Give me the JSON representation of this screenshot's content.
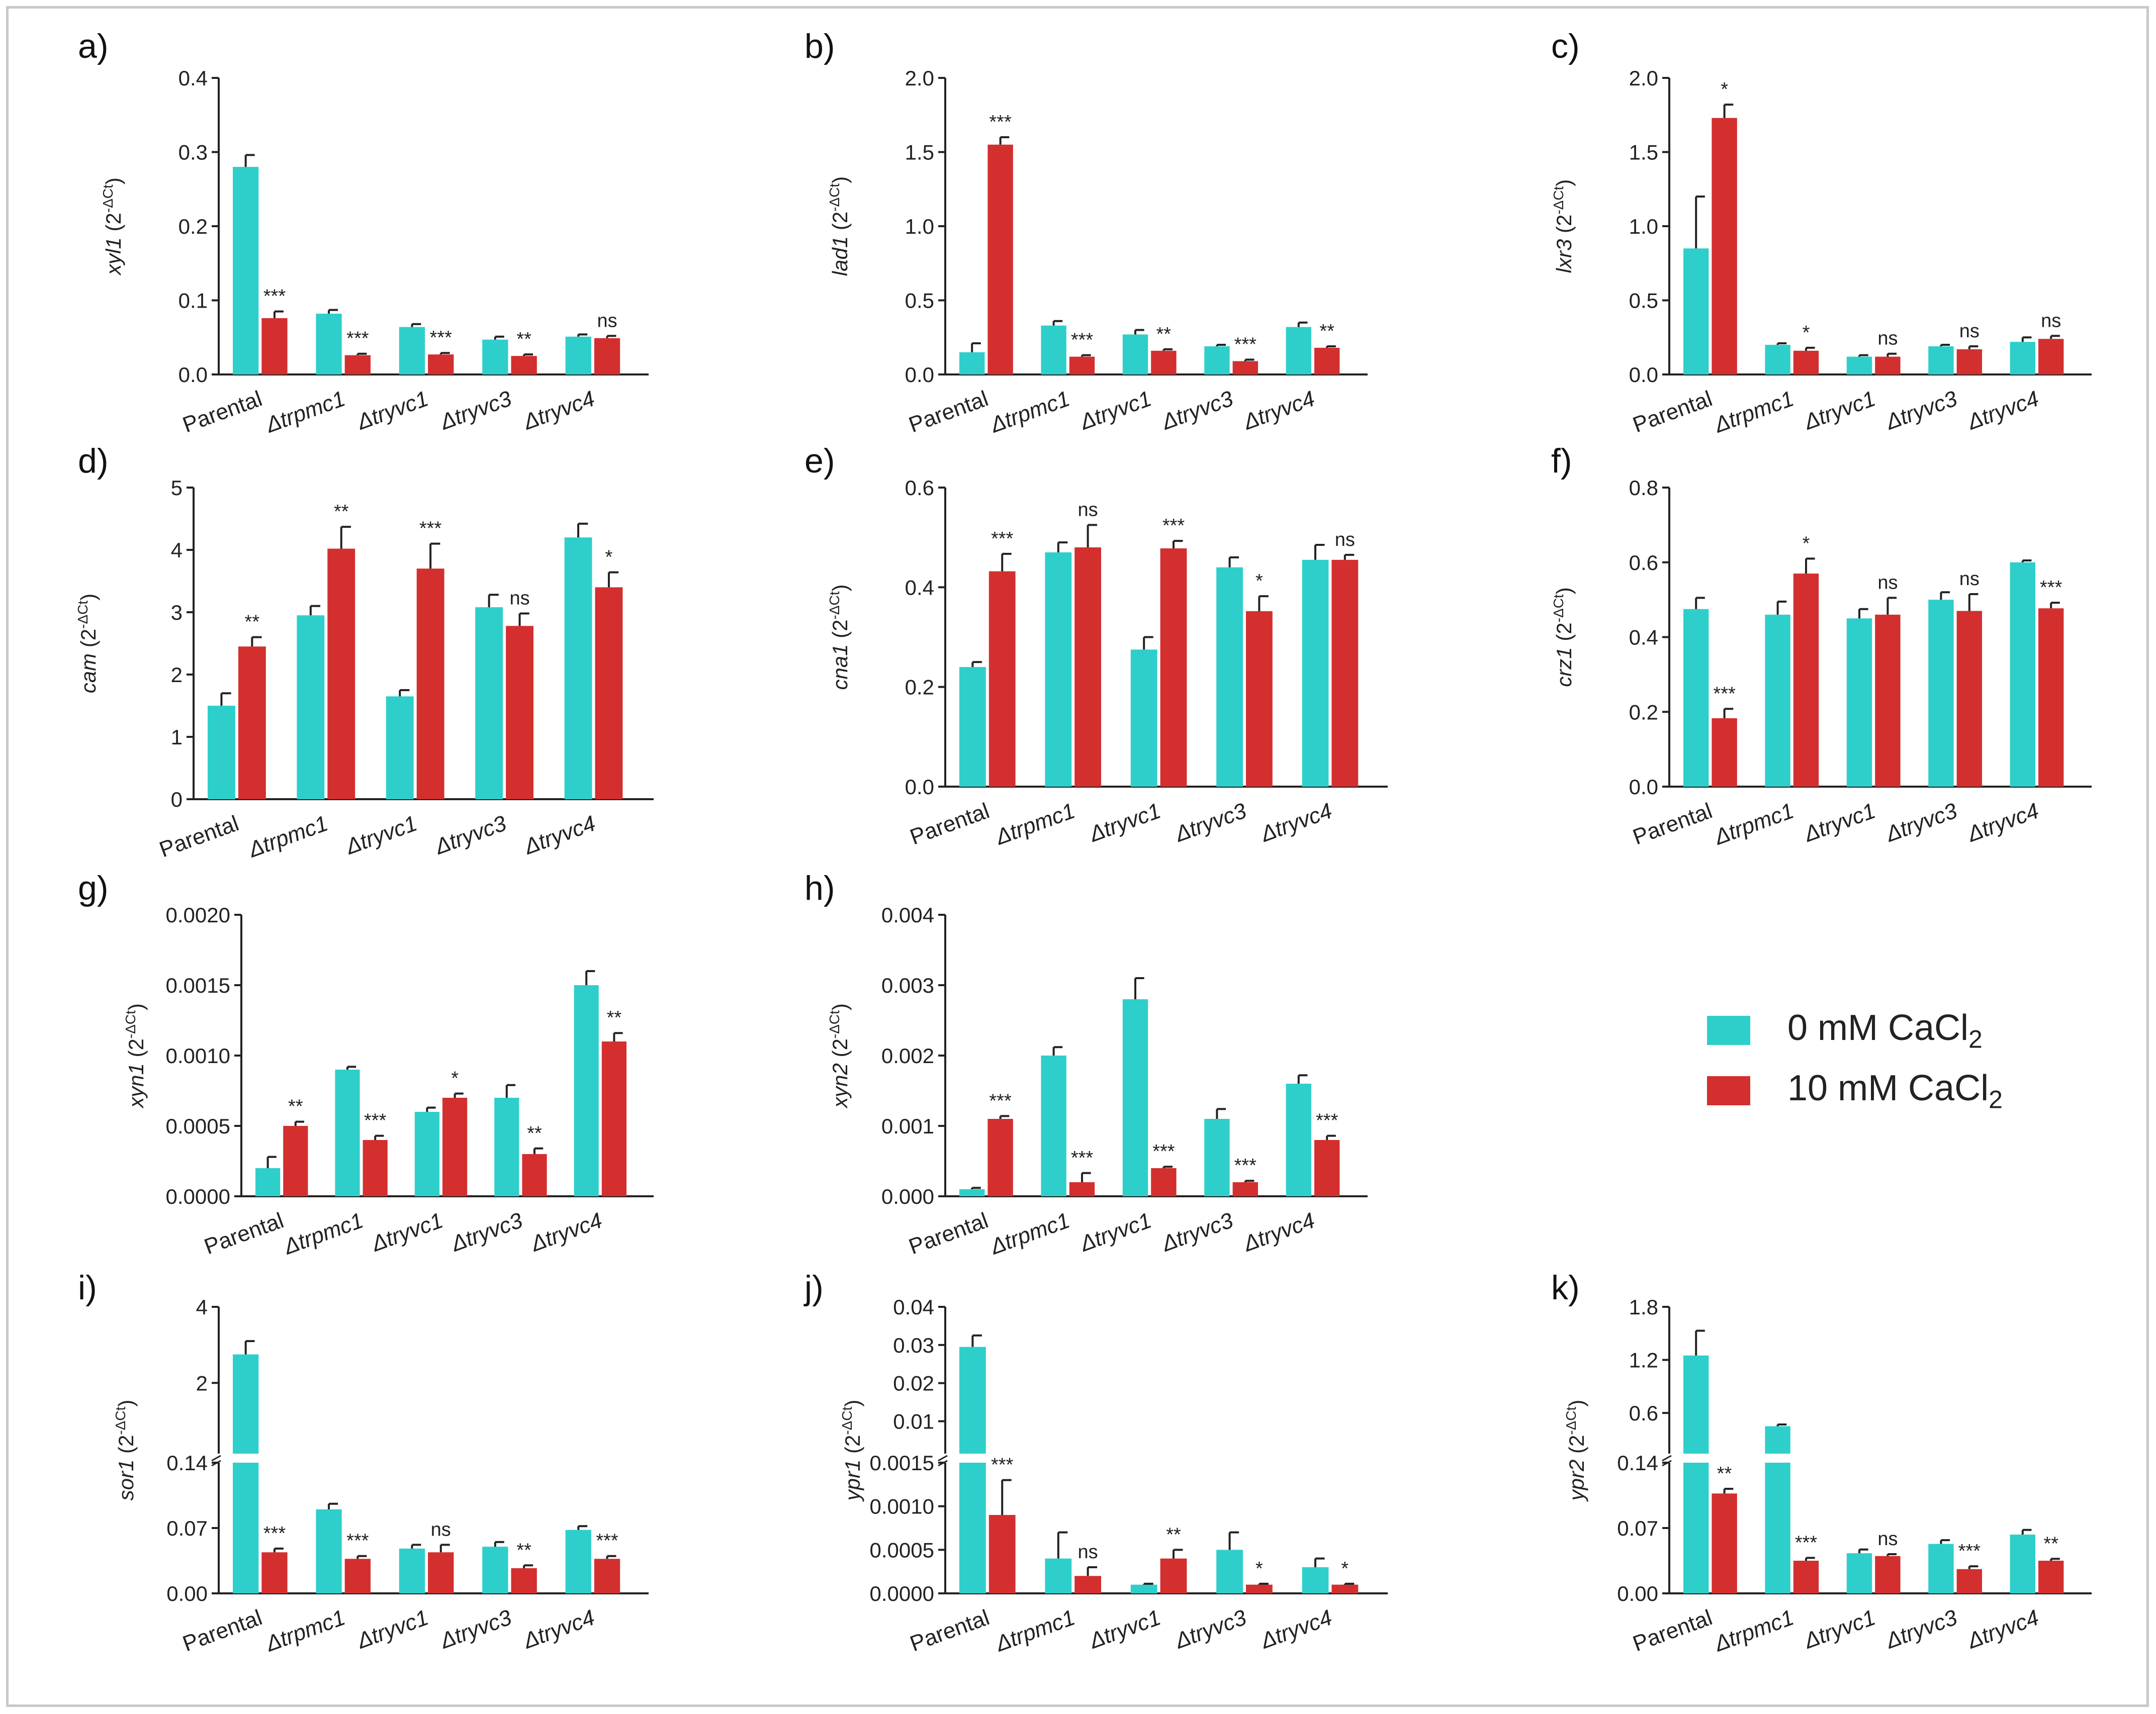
{
  "colors": {
    "control": "#2ECFCB",
    "treated": "#D32F2F",
    "axis": "#222222"
  },
  "legend": {
    "control_prefix": "0 mM CaCl",
    "control_sub": "2",
    "treated_prefix": "10 mM CaCl",
    "treated_sub": "2"
  },
  "chart_data": [
    {
      "type": "bar",
      "panel": "a)",
      "gene": "xyl1",
      "ylabel_suffix": " (2",
      "categories": [
        "Parental",
        "Δtrpmc1",
        "Δtryvc1",
        "Δtryvc3",
        "Δtryvc4"
      ],
      "ylim": [
        0,
        0.4
      ],
      "ticks": [
        "0.0",
        "0.1",
        "0.2",
        "0.3",
        "0.4"
      ],
      "series": [
        {
          "name": "0 mM CaCl2",
          "values": [
            0.28,
            0.082,
            0.064,
            0.047,
            0.051
          ],
          "errors": [
            0.016,
            0.005,
            0.004,
            0.004,
            0.003
          ]
        },
        {
          "name": "10 mM CaCl2",
          "values": [
            0.076,
            0.026,
            0.027,
            0.025,
            0.049
          ],
          "errors": [
            0.009,
            0.002,
            0.002,
            0.002,
            0.003
          ]
        }
      ],
      "significance": [
        "***",
        "***",
        "***",
        "**",
        "ns"
      ]
    },
    {
      "type": "bar",
      "panel": "b)",
      "gene": "lad1",
      "categories": [
        "Parental",
        "Δtrpmc1",
        "Δtryvc1",
        "Δtryvc3",
        "Δtryvc4"
      ],
      "ylim": [
        0,
        2.0
      ],
      "ticks": [
        "0.0",
        "0.5",
        "1.0",
        "1.5",
        "2.0"
      ],
      "series": [
        {
          "name": "0 mM CaCl2",
          "values": [
            0.15,
            0.33,
            0.27,
            0.19,
            0.32
          ],
          "errors": [
            0.06,
            0.03,
            0.03,
            0.01,
            0.03
          ]
        },
        {
          "name": "10 mM CaCl2",
          "values": [
            1.55,
            0.12,
            0.16,
            0.09,
            0.18
          ],
          "errors": [
            0.05,
            0.01,
            0.01,
            0.01,
            0.01
          ]
        }
      ],
      "significance": [
        "***",
        "***",
        "**",
        "***",
        "**"
      ]
    },
    {
      "type": "bar",
      "panel": "c)",
      "gene": "lxr3",
      "categories": [
        "Parental",
        "Δtrpmc1",
        "Δtryvc1",
        "Δtryvc3",
        "Δtryvc4"
      ],
      "ylim": [
        0,
        2.0
      ],
      "ticks": [
        "0.0",
        "0.5",
        "1.0",
        "1.5",
        "2.0"
      ],
      "series": [
        {
          "name": "0 mM CaCl2",
          "values": [
            0.85,
            0.2,
            0.12,
            0.19,
            0.22
          ],
          "errors": [
            0.35,
            0.01,
            0.01,
            0.01,
            0.03
          ]
        },
        {
          "name": "10 mM CaCl2",
          "values": [
            1.73,
            0.16,
            0.12,
            0.17,
            0.24
          ],
          "errors": [
            0.09,
            0.02,
            0.02,
            0.02,
            0.02
          ]
        }
      ],
      "significance": [
        "*",
        "*",
        "ns",
        "ns",
        "ns"
      ]
    },
    {
      "type": "bar",
      "panel": "d)",
      "gene": "cam",
      "categories": [
        "Parental",
        "Δtrpmc1",
        "Δtryvc1",
        "Δtryvc3",
        "Δtryvc4"
      ],
      "ylim": [
        0,
        5
      ],
      "ticks": [
        "0",
        "1",
        "2",
        "3",
        "4",
        "5"
      ],
      "series": [
        {
          "name": "0 mM CaCl2",
          "values": [
            1.5,
            2.95,
            1.65,
            3.08,
            4.2
          ],
          "errors": [
            0.2,
            0.15,
            0.1,
            0.2,
            0.22
          ]
        },
        {
          "name": "10 mM CaCl2",
          "values": [
            2.45,
            4.02,
            3.7,
            2.78,
            3.4
          ],
          "errors": [
            0.15,
            0.35,
            0.4,
            0.2,
            0.24
          ]
        }
      ],
      "significance": [
        "**",
        "**",
        "***",
        "ns",
        "*"
      ]
    },
    {
      "type": "bar",
      "panel": "e)",
      "gene": "cna1",
      "categories": [
        "Parental",
        "Δtrpmc1",
        "Δtryvc1",
        "Δtryvc3",
        "Δtryvc4"
      ],
      "ylim": [
        0,
        0.6
      ],
      "ticks": [
        "0.0",
        "0.2",
        "0.4",
        "0.6"
      ],
      "series": [
        {
          "name": "0 mM CaCl2",
          "values": [
            0.24,
            0.47,
            0.275,
            0.44,
            0.455
          ],
          "errors": [
            0.01,
            0.02,
            0.025,
            0.02,
            0.03
          ]
        },
        {
          "name": "10 mM CaCl2",
          "values": [
            0.432,
            0.48,
            0.478,
            0.352,
            0.455
          ],
          "errors": [
            0.035,
            0.045,
            0.015,
            0.03,
            0.01
          ]
        }
      ],
      "significance": [
        "***",
        "ns",
        "***",
        "*",
        "ns"
      ]
    },
    {
      "type": "bar",
      "panel": "f)",
      "gene": "crz1",
      "categories": [
        "Parental",
        "Δtrpmc1",
        "Δtryvc1",
        "Δtryvc3",
        "Δtryvc4"
      ],
      "ylim": [
        0,
        0.8
      ],
      "ticks": [
        "0.0",
        "0.2",
        "0.4",
        "0.6",
        "0.8"
      ],
      "series": [
        {
          "name": "0 mM CaCl2",
          "values": [
            0.475,
            0.46,
            0.45,
            0.5,
            0.6
          ],
          "errors": [
            0.03,
            0.035,
            0.025,
            0.02,
            0.005
          ]
        },
        {
          "name": "10 mM CaCl2",
          "values": [
            0.183,
            0.57,
            0.46,
            0.47,
            0.477
          ],
          "errors": [
            0.025,
            0.04,
            0.045,
            0.045,
            0.015
          ]
        }
      ],
      "significance": [
        "***",
        "*",
        "ns",
        "ns",
        "***"
      ]
    },
    {
      "type": "bar",
      "panel": "g)",
      "gene": "xyn1",
      "categories": [
        "Parental",
        "Δtrpmc1",
        "Δtryvc1",
        "Δtryvc3",
        "Δtryvc4"
      ],
      "ylim": [
        0,
        0.002
      ],
      "ticks": [
        "0.0000",
        "0.0005",
        "0.0010",
        "0.0015",
        "0.0020"
      ],
      "series": [
        {
          "name": "0 mM CaCl2",
          "values": [
            0.0002,
            0.0009,
            0.0006,
            0.0007,
            0.0015
          ],
          "errors": [
            8e-05,
            2e-05,
            3e-05,
            9e-05,
            0.0001
          ]
        },
        {
          "name": "10 mM CaCl2",
          "values": [
            0.0005,
            0.0004,
            0.0007,
            0.0003,
            0.0011
          ],
          "errors": [
            3e-05,
            3e-05,
            3e-05,
            4e-05,
            6e-05
          ]
        }
      ],
      "significance": [
        "**",
        "***",
        "*",
        "**",
        "**"
      ]
    },
    {
      "type": "bar",
      "panel": "h)",
      "gene": "xyn2",
      "categories": [
        "Parental",
        "Δtrpmc1",
        "Δtryvc1",
        "Δtryvc3",
        "Δtryvc4"
      ],
      "ylim": [
        0,
        0.004
      ],
      "ticks": [
        "0.000",
        "0.001",
        "0.002",
        "0.003",
        "0.004"
      ],
      "series": [
        {
          "name": "0 mM CaCl2",
          "values": [
            0.0001,
            0.002,
            0.0028,
            0.0011,
            0.0016
          ],
          "errors": [
            2e-05,
            0.00012,
            0.0003,
            0.00014,
            0.00012
          ]
        },
        {
          "name": "10 mM CaCl2",
          "values": [
            0.0011,
            0.0002,
            0.0004,
            0.0002,
            0.0008
          ],
          "errors": [
            4e-05,
            0.00013,
            2e-05,
            2e-05,
            6e-05
          ]
        }
      ],
      "significance": [
        "***",
        "***",
        "***",
        "***",
        "***"
      ]
    },
    {
      "type": "bar",
      "panel": "i)",
      "gene": "sor1",
      "broken_axis": true,
      "categories": [
        "Parental",
        "Δtrpmc1",
        "Δtryvc1",
        "Δtryvc3",
        "Δtryvc4"
      ],
      "lower_ylim": [
        0,
        0.14
      ],
      "lower_ticks": [
        "0.00",
        "0.07",
        "0.14"
      ],
      "upper_ylim": [
        0.14,
        4
      ],
      "upper_ticks": [
        "2",
        "4"
      ],
      "series": [
        {
          "name": "0 mM CaCl2",
          "values": [
            2.75,
            0.09,
            0.048,
            0.05,
            0.068
          ],
          "errors": [
            0.35,
            0.006,
            0.004,
            0.005,
            0.004
          ]
        },
        {
          "name": "10 mM CaCl2",
          "values": [
            0.044,
            0.037,
            0.044,
            0.027,
            0.037
          ],
          "errors": [
            0.004,
            0.003,
            0.008,
            0.003,
            0.003
          ]
        }
      ],
      "significance": [
        "***",
        "***",
        "ns",
        "**",
        "***"
      ]
    },
    {
      "type": "bar",
      "panel": "j)",
      "gene": "ypr1",
      "broken_axis": true,
      "categories": [
        "Parental",
        "Δtrpmc1",
        "Δtryvc1",
        "Δtryvc3",
        "Δtryvc4"
      ],
      "lower_ylim": [
        0,
        0.0015
      ],
      "lower_ticks": [
        "0.0000",
        "0.0005",
        "0.0010",
        "0.0015"
      ],
      "upper_ylim": [
        0.0015,
        0.04
      ],
      "upper_ticks": [
        "0.01",
        "0.02",
        "0.03",
        "0.04"
      ],
      "series": [
        {
          "name": "0 mM CaCl2",
          "values": [
            0.0295,
            0.0004,
            0.0001,
            0.0005,
            0.0003
          ],
          "errors": [
            0.003,
            0.0003,
            1e-05,
            0.0002,
            0.0001
          ]
        },
        {
          "name": "10 mM CaCl2",
          "values": [
            0.0009,
            0.0002,
            0.0004,
            0.0001,
            0.0001
          ],
          "errors": [
            0.0004,
            0.0001,
            0.0001,
            1e-05,
            1e-05
          ]
        }
      ],
      "significance": [
        "***",
        "ns",
        "**",
        "*",
        "*"
      ]
    },
    {
      "type": "bar",
      "panel": "k)",
      "gene": "ypr2",
      "broken_axis": true,
      "categories": [
        "Parental",
        "Δtrpmc1",
        "Δtryvc1",
        "Δtryvc3",
        "Δtryvc4"
      ],
      "lower_ylim": [
        0,
        0.14
      ],
      "lower_ticks": [
        "0.00",
        "0.07",
        "0.14"
      ],
      "upper_ylim": [
        0.14,
        1.8
      ],
      "upper_ticks": [
        "0.6",
        "1.2",
        "1.8"
      ],
      "series": [
        {
          "name": "0 mM CaCl2",
          "values": [
            1.25,
            0.45,
            0.043,
            0.053,
            0.063
          ],
          "errors": [
            0.28,
            0.02,
            0.004,
            0.004,
            0.005
          ]
        },
        {
          "name": "10 mM CaCl2",
          "values": [
            0.107,
            0.035,
            0.04,
            0.026,
            0.035
          ],
          "errors": [
            0.005,
            0.003,
            0.002,
            0.003,
            0.002
          ]
        }
      ],
      "significance": [
        "**",
        "***",
        "ns",
        "***",
        "**"
      ]
    }
  ]
}
